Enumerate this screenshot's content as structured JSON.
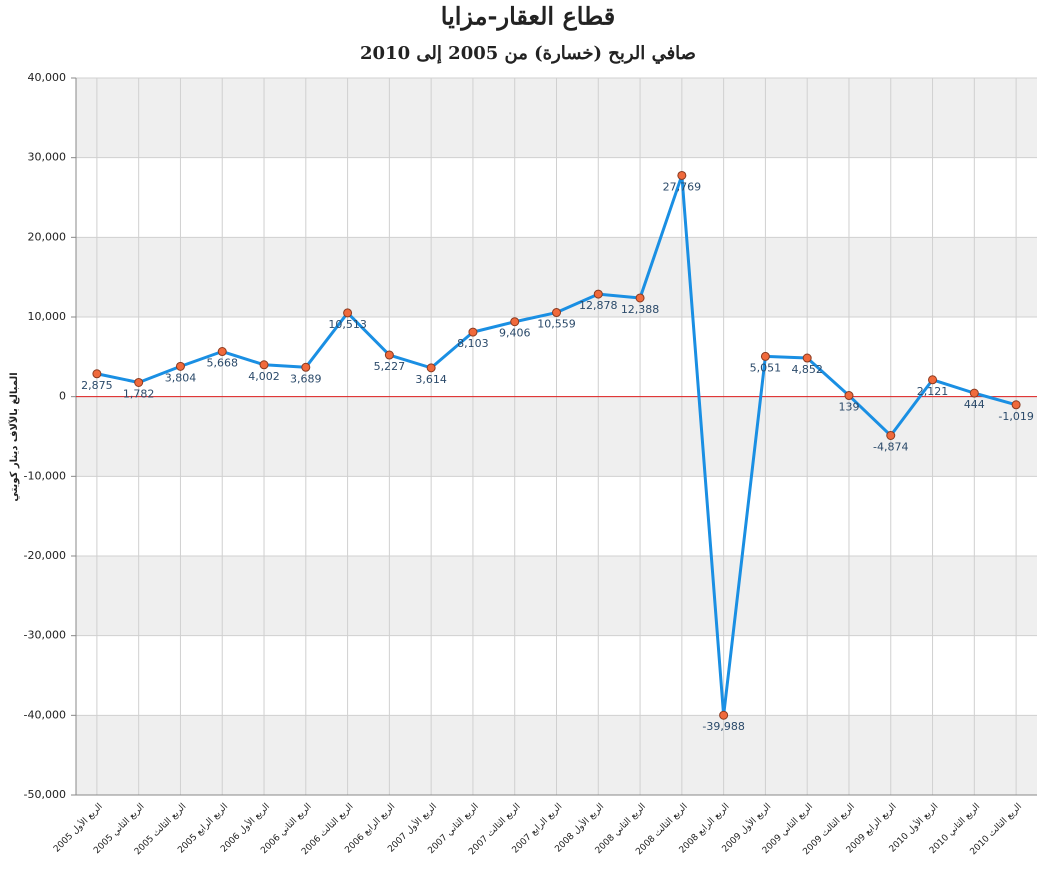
{
  "chart_data": {
    "type": "line",
    "title": "قطاع العقار-مزايا",
    "subtitle": "صافي الربح (خسارة) من 2005 إلى 2010",
    "y_label": "المبالغ بالآلاف دينار كويتي",
    "categories": [
      "الربع الأول 2005",
      "الربع الثاني 2005",
      "الربع الثالث 2005",
      "الربع الرابع 2005",
      "الربع الأول 2006",
      "الربع الثاني 2006",
      "الربع الثالث 2006",
      "الربع الرابع 2006",
      "الربع الأول 2007",
      "الربع الثاني 2007",
      "الربع الثالث 2007",
      "الربع الرابع 2007",
      "الربع الأول 2008",
      "الربع الثاني 2008",
      "الربع الثالث 2008",
      "الربع الرابع 2008",
      "الربع الأول 2009",
      "الربع الثاني 2009",
      "الربع الثالث 2009",
      "الربع الرابع 2009",
      "الربع الأول 2010",
      "الربع الثاني 2010",
      "الربع الثالث 2010"
    ],
    "series": [
      {
        "name": "صافي الربح",
        "color": "#1a8fe3",
        "marker_color": "#f06a3c",
        "values": [
          2875,
          1782,
          3804,
          5668,
          4002,
          3689,
          10513,
          5227,
          3614,
          8103,
          9406,
          10559,
          12878,
          12388,
          27769,
          -39988,
          5051,
          4852,
          139,
          -4874,
          2121,
          444,
          -1019
        ],
        "value_labels": [
          "2,875",
          "1,782",
          "3,804",
          "5,668",
          "4,002",
          "3,689",
          "10,513",
          "5,227",
          "3,614",
          "8,103",
          "9,406",
          "10,559",
          "12,878",
          "12,388",
          "27,769",
          "-39,988",
          "5,051",
          "4,852",
          "139",
          "-4,874",
          "2,121",
          "444",
          "-1,019"
        ]
      }
    ],
    "ylim": [
      -50000,
      40000
    ],
    "yticks": [
      {
        "value": -50000,
        "label": "-50,000"
      },
      {
        "value": -40000,
        "label": "-40,000"
      },
      {
        "value": -30000,
        "label": "-30,000"
      },
      {
        "value": -20000,
        "label": "-20,000"
      },
      {
        "value": -10000,
        "label": "-10,000"
      },
      0,
      {
        "value": 10000,
        "label": "10,000"
      },
      {
        "value": 20000,
        "label": "20,000"
      },
      {
        "value": 30000,
        "label": "30,000"
      },
      {
        "value": 40000,
        "label": "40,000"
      }
    ],
    "grid": true,
    "zero_line_color": "#e02020",
    "band_color": "#efefef"
  }
}
